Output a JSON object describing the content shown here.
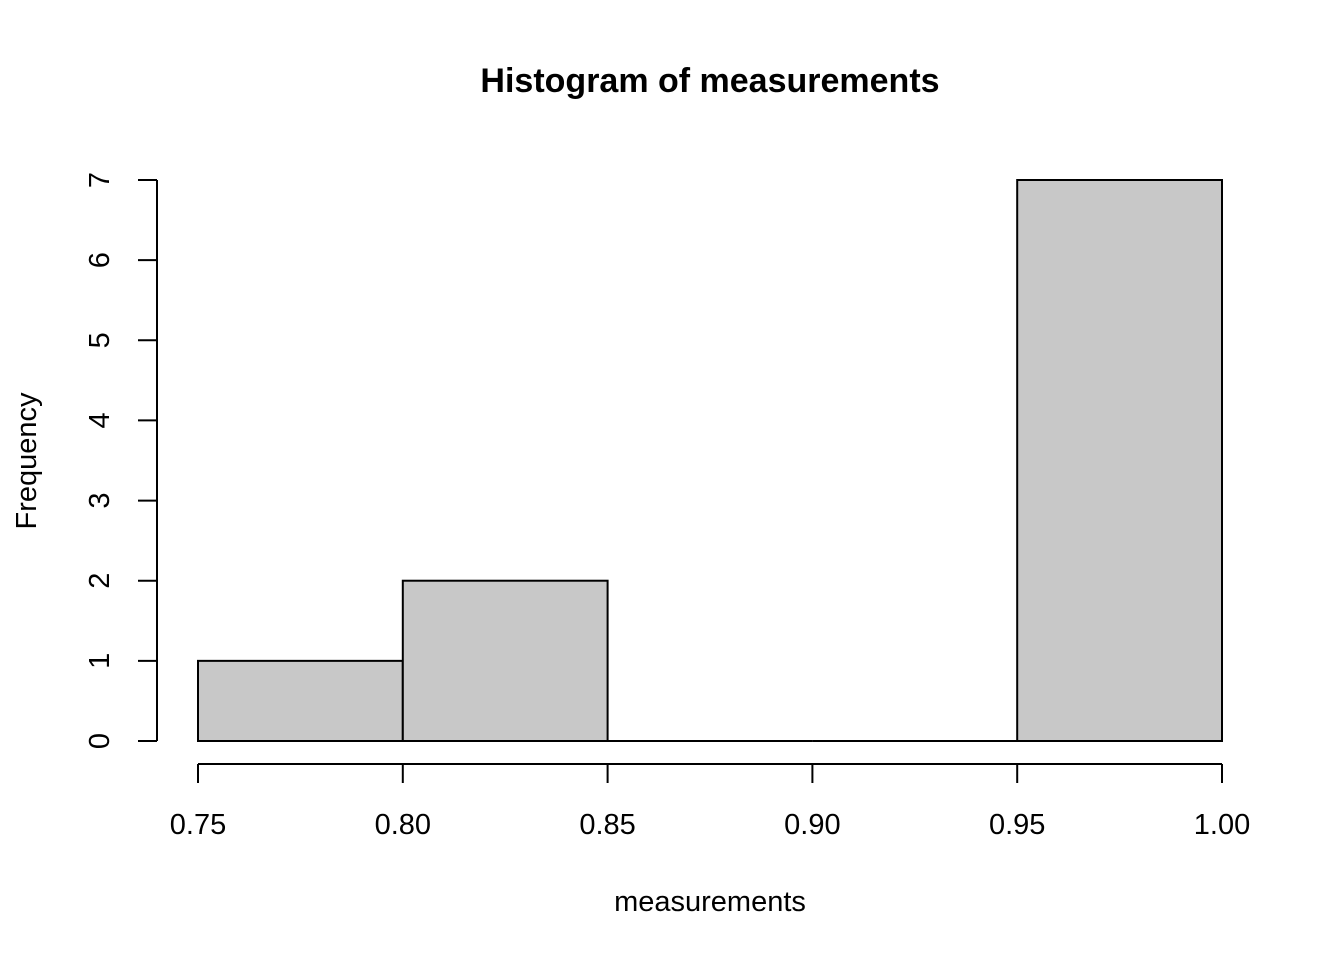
{
  "chart_data": {
    "type": "bar",
    "title": "Histogram of measurements",
    "xlabel": "measurements",
    "ylabel": "Frequency",
    "bins": [
      {
        "from": 0.75,
        "to": 0.8,
        "count": 1
      },
      {
        "from": 0.8,
        "to": 0.85,
        "count": 2
      },
      {
        "from": 0.85,
        "to": 0.9,
        "count": 0
      },
      {
        "from": 0.9,
        "to": 0.95,
        "count": 0
      },
      {
        "from": 0.95,
        "to": 1.0,
        "count": 7
      }
    ],
    "xlim": [
      0.75,
      1.0
    ],
    "ylim": [
      0,
      7
    ],
    "x_ticks": [
      "0.75",
      "0.80",
      "0.85",
      "0.90",
      "0.95",
      "1.00"
    ],
    "y_ticks": [
      "0",
      "1",
      "2",
      "3",
      "4",
      "5",
      "6",
      "7"
    ],
    "bar_color": "#c8c8c8",
    "grid": false,
    "legend": "none"
  }
}
